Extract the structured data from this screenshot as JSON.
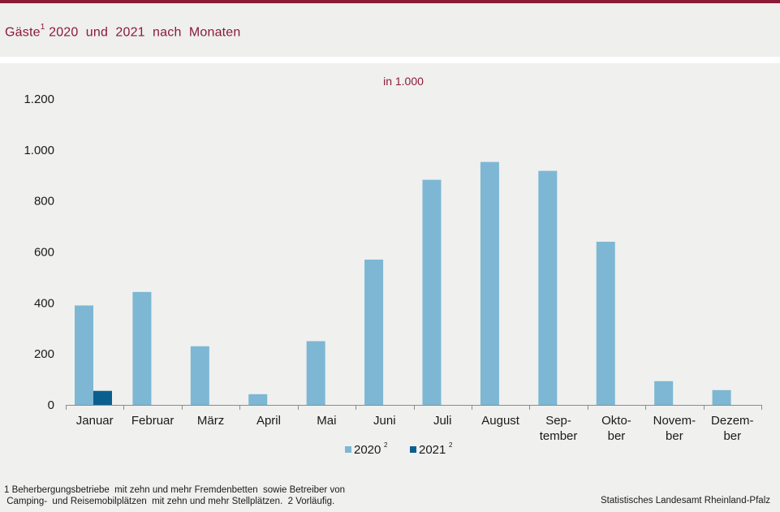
{
  "header": {
    "title": "Gäste",
    "title_sup": "1",
    "title_rest": " 2020  und  2021  nach  Monaten"
  },
  "chart_data": {
    "type": "bar",
    "unit_label": "in 1.000",
    "categories": [
      [
        "Januar"
      ],
      [
        "Februar"
      ],
      [
        "März"
      ],
      [
        "April"
      ],
      [
        "Mai"
      ],
      [
        "Juni"
      ],
      [
        "Juli"
      ],
      [
        "August"
      ],
      [
        "Sep-",
        "tember"
      ],
      [
        "Okto-",
        "ber"
      ],
      [
        "Novem-",
        "ber"
      ],
      [
        "Dezem-",
        "ber"
      ]
    ],
    "series": [
      {
        "name": "2020",
        "name_sup": "2",
        "color": "#7db7d3",
        "values": [
          390,
          443,
          230,
          42,
          250,
          570,
          883,
          953,
          918,
          640,
          93,
          58
        ]
      },
      {
        "name": "2021",
        "name_sup": "2",
        "color": "#0a5f8f",
        "values": [
          55,
          null,
          null,
          null,
          null,
          null,
          null,
          null,
          null,
          null,
          null,
          null
        ]
      }
    ],
    "ylim": [
      0,
      1200
    ],
    "yticks": [
      0,
      200,
      400,
      600,
      800,
      1000,
      1200
    ],
    "ytick_labels": [
      "0",
      "200",
      "400",
      "600",
      "800",
      "1.000",
      "1.200"
    ],
    "grid": false,
    "legend_placement": "bottom-center"
  },
  "footer": {
    "footnote_line1": "1 Beherbergungsbetriebe  mit zehn und mehr Fremdenbetten  sowie Betreiber von",
    "footnote_line2": " Camping-  und Reisemobilplätzen  mit zehn und mehr Stellplätzen.  2 Vorläufig.",
    "source": "Statistisches Landesamt Rheinland-Pfalz"
  }
}
